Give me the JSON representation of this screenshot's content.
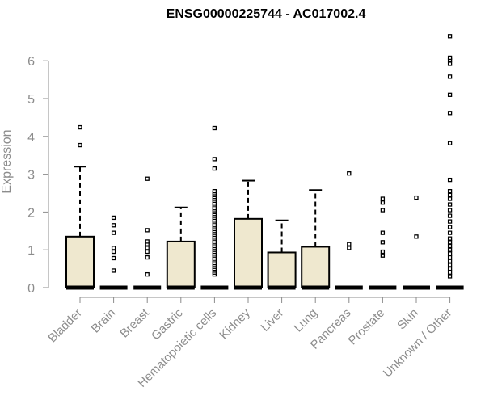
{
  "chart_data": {
    "type": "boxplot",
    "title": "ENSG00000225744 - AC017002.4",
    "xlabel": "",
    "ylabel": "Expression",
    "ylim": [
      0,
      6.5
    ],
    "yticks": [
      0,
      1,
      2,
      3,
      4,
      5,
      6
    ],
    "box_color": "#efe8cf",
    "grid": false,
    "categories": [
      "Bladder",
      "Brain",
      "Breast",
      "Gastric",
      "Hematopoietic cells",
      "Kidney",
      "Liver",
      "Lung",
      "Pancreas",
      "Prostate",
      "Skin",
      "Unknown / Other"
    ],
    "boxes": [
      {
        "category": "Bladder",
        "q1": 0,
        "median": 0,
        "q3": 1.35,
        "whisker_low": 0,
        "whisker_high": 3.2,
        "outliers": [
          3.77,
          4.24
        ]
      },
      {
        "category": "Brain",
        "q1": 0,
        "median": 0,
        "q3": 0,
        "whisker_low": 0,
        "whisker_high": 0,
        "outliers": [
          0.45,
          0.78,
          0.95,
          1.05,
          1.45,
          1.65,
          1.85
        ]
      },
      {
        "category": "Breast",
        "q1": 0,
        "median": 0,
        "q3": 0,
        "whisker_low": 0,
        "whisker_high": 0,
        "outliers": [
          0.35,
          0.8,
          0.95,
          1.05,
          1.15,
          1.22,
          1.52,
          2.88
        ]
      },
      {
        "category": "Gastric",
        "q1": 0,
        "median": 0,
        "q3": 1.22,
        "whisker_low": 0,
        "whisker_high": 2.12,
        "outliers": []
      },
      {
        "category": "Hematopoietic cells",
        "q1": 0,
        "median": 0,
        "q3": 0,
        "whisker_low": 0,
        "whisker_high": 0,
        "outliers": [
          0.35,
          0.4,
          0.45,
          0.5,
          0.55,
          0.6,
          0.65,
          0.7,
          0.75,
          0.8,
          0.85,
          0.9,
          0.95,
          1.0,
          1.05,
          1.1,
          1.15,
          1.2,
          1.25,
          1.3,
          1.35,
          1.4,
          1.45,
          1.5,
          1.55,
          1.6,
          1.65,
          1.7,
          1.75,
          1.8,
          1.85,
          1.9,
          1.95,
          2.0,
          2.05,
          2.1,
          2.15,
          2.2,
          2.25,
          2.3,
          2.35,
          2.4,
          2.45,
          2.5,
          2.55,
          3.15,
          3.4,
          4.22
        ]
      },
      {
        "category": "Kidney",
        "q1": 0,
        "median": 0,
        "q3": 1.82,
        "whisker_low": 0,
        "whisker_high": 2.83,
        "outliers": []
      },
      {
        "category": "Liver",
        "q1": 0,
        "median": 0,
        "q3": 0.93,
        "whisker_low": 0,
        "whisker_high": 1.78,
        "outliers": []
      },
      {
        "category": "Lung",
        "q1": 0,
        "median": 0,
        "q3": 1.08,
        "whisker_low": 0,
        "whisker_high": 2.58,
        "outliers": []
      },
      {
        "category": "Pancreas",
        "q1": 0,
        "median": 0,
        "q3": 0,
        "whisker_low": 0,
        "whisker_high": 0,
        "outliers": [
          1.05,
          1.15,
          3.02
        ]
      },
      {
        "category": "Prostate",
        "q1": 0,
        "median": 0,
        "q3": 0,
        "whisker_low": 0,
        "whisker_high": 0,
        "outliers": [
          0.85,
          0.95,
          1.2,
          1.45,
          2.05,
          2.25,
          2.35
        ]
      },
      {
        "category": "Skin",
        "q1": 0,
        "median": 0,
        "q3": 0,
        "whisker_low": 0,
        "whisker_high": 0,
        "outliers": [
          1.35,
          2.38
        ]
      },
      {
        "category": "Unknown / Other",
        "q1": 0,
        "median": 0,
        "q3": 0,
        "whisker_low": 0,
        "whisker_high": 0,
        "outliers": [
          0.3,
          0.4,
          0.5,
          0.6,
          0.7,
          0.8,
          0.9,
          1.0,
          1.1,
          1.2,
          1.3,
          1.45,
          1.6,
          1.75,
          1.9,
          2.05,
          2.2,
          2.35,
          2.45,
          2.55,
          2.85,
          3.82,
          4.62,
          5.1,
          5.58,
          5.92,
          6.02,
          6.08,
          6.65
        ]
      }
    ]
  }
}
